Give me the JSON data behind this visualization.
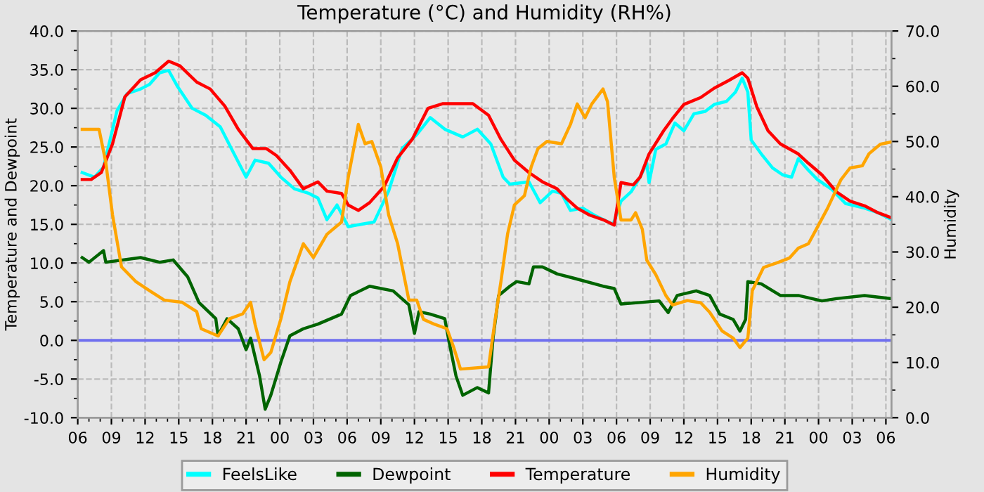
{
  "chart_data": {
    "type": "line",
    "title": "Temperature (°C) and Humidity (RH%)",
    "ylabel": "Temperature and Dewpoint",
    "y2label": "Humidity",
    "xlim": [
      6,
      78.5
    ],
    "xticks": [
      {
        "value": 6,
        "label": "06"
      },
      {
        "value": 9,
        "label": "09"
      },
      {
        "value": 12,
        "label": "12"
      },
      {
        "value": 15,
        "label": "15"
      },
      {
        "value": 18,
        "label": "18"
      },
      {
        "value": 21,
        "label": "21"
      },
      {
        "value": 24,
        "label": "00"
      },
      {
        "value": 27,
        "label": "03"
      },
      {
        "value": 30,
        "label": "06"
      },
      {
        "value": 33,
        "label": "09"
      },
      {
        "value": 36,
        "label": "12"
      },
      {
        "value": 39,
        "label": "15"
      },
      {
        "value": 42,
        "label": "18"
      },
      {
        "value": 45,
        "label": "21"
      },
      {
        "value": 48,
        "label": "00"
      },
      {
        "value": 51,
        "label": "03"
      },
      {
        "value": 54,
        "label": "06"
      },
      {
        "value": 57,
        "label": "09"
      },
      {
        "value": 60,
        "label": "12"
      },
      {
        "value": 63,
        "label": "15"
      },
      {
        "value": 66,
        "label": "18"
      },
      {
        "value": 69,
        "label": "21"
      },
      {
        "value": 72,
        "label": "00"
      },
      {
        "value": 75,
        "label": "03"
      },
      {
        "value": 78,
        "label": "06"
      }
    ],
    "ylim": [
      -10,
      40
    ],
    "yticks": [
      {
        "value": -10,
        "label": "-10.0"
      },
      {
        "value": -5,
        "label": "-5.0"
      },
      {
        "value": 0,
        "label": "0.0"
      },
      {
        "value": 5,
        "label": "5.0"
      },
      {
        "value": 10,
        "label": "10.0"
      },
      {
        "value": 15,
        "label": "15.0"
      },
      {
        "value": 20,
        "label": "20.0"
      },
      {
        "value": 25,
        "label": "25.0"
      },
      {
        "value": 30,
        "label": "30.0"
      },
      {
        "value": 35,
        "label": "35.0"
      },
      {
        "value": 40,
        "label": "40.0"
      }
    ],
    "y2lim": [
      0,
      70
    ],
    "y2ticks": [
      {
        "value": 0,
        "label": "0.0"
      },
      {
        "value": 10,
        "label": "10.0"
      },
      {
        "value": 20,
        "label": "20.0"
      },
      {
        "value": 30,
        "label": "30.0"
      },
      {
        "value": 40,
        "label": "40.0"
      },
      {
        "value": 50,
        "label": "50.0"
      },
      {
        "value": 60,
        "label": "60.0"
      },
      {
        "value": 70,
        "label": "70.0"
      }
    ],
    "grid": true,
    "legend": "bottom",
    "line_style": "solid",
    "marker": "none",
    "ref_lines": [
      {
        "axis": "y",
        "value": 0,
        "color": "#6f6fef"
      }
    ],
    "series": [
      {
        "name": "FeelsLike",
        "color": "#00ffff",
        "x": [
          6.4,
          7.5,
          8.3,
          9.5,
          10.4,
          11.6,
          12.4,
          13.3,
          14.1,
          14.9,
          16.2,
          17.4,
          18.7,
          19.9,
          21.0,
          21.8,
          23.0,
          24.1,
          25.3,
          26.6,
          27.4,
          28.2,
          29.1,
          30.1,
          31.2,
          32.4,
          33.7,
          34.9,
          36.2,
          37.4,
          38.7,
          40.3,
          41.6,
          42.8,
          43.9,
          44.5,
          46.2,
          47.2,
          48.3,
          49.1,
          49.9,
          51.0,
          52.0,
          53.7,
          54.4,
          55.3,
          56.1,
          56.7,
          56.9,
          57.5,
          58.4,
          59.2,
          60.0,
          60.9,
          61.9,
          62.7,
          63.8,
          64.6,
          65.2,
          65.7,
          66.0,
          66.9,
          67.9,
          68.8,
          69.6,
          70.2,
          71.1,
          71.9,
          73.2,
          74.4,
          76.1,
          77.3,
          78.4
        ],
        "values": [
          21.7,
          21.1,
          22.4,
          29.7,
          31.9,
          32.5,
          33.1,
          34.6,
          34.9,
          32.8,
          30.0,
          29.1,
          27.6,
          24.2,
          21.1,
          23.3,
          22.9,
          21.1,
          19.6,
          19.0,
          18.4,
          15.6,
          17.5,
          14.7,
          15.0,
          15.3,
          19.3,
          24.8,
          26.6,
          28.8,
          27.3,
          26.3,
          27.3,
          25.4,
          21.1,
          20.2,
          20.5,
          17.8,
          19.3,
          19.0,
          16.8,
          17.1,
          16.2,
          15.0,
          18.0,
          19.2,
          21.1,
          22.9,
          20.4,
          24.7,
          25.4,
          28.1,
          27.1,
          29.3,
          29.6,
          30.5,
          30.9,
          32.1,
          33.9,
          32.1,
          25.9,
          24.1,
          22.3,
          21.4,
          21.1,
          23.5,
          22.0,
          20.8,
          19.5,
          17.7,
          17.1,
          16.5,
          15.7
        ]
      },
      {
        "name": "Dewpoint",
        "color": "#006400",
        "x": [
          6.4,
          7.0,
          8.3,
          8.5,
          11.6,
          13.3,
          14.5,
          15.8,
          16.8,
          18.3,
          18.5,
          19.3,
          20.3,
          21.0,
          21.4,
          22.2,
          22.7,
          23.2,
          24.1,
          24.9,
          26.1,
          27.4,
          29.5,
          30.3,
          32.0,
          34.1,
          35.5,
          36.0,
          36.4,
          37.4,
          38.7,
          39.1,
          39.7,
          40.3,
          41.6,
          42.6,
          43.0,
          43.5,
          44.5,
          45.1,
          46.2,
          46.6,
          47.4,
          48.7,
          50.3,
          52.8,
          53.8,
          54.4,
          56.1,
          57.8,
          58.6,
          59.4,
          61.1,
          62.3,
          63.2,
          64.4,
          65.0,
          65.5,
          65.7,
          66.9,
          68.6,
          70.2,
          72.3,
          73.6,
          76.1,
          78.4
        ],
        "values": [
          10.7,
          10.1,
          11.6,
          10.1,
          10.7,
          10.1,
          10.4,
          8.2,
          4.9,
          2.8,
          0.6,
          2.8,
          1.5,
          -1.2,
          0.3,
          -4.6,
          -8.9,
          -7.1,
          -2.8,
          0.6,
          1.5,
          2.1,
          3.4,
          5.8,
          7.0,
          6.4,
          4.6,
          0.9,
          3.7,
          3.4,
          2.8,
          -0.3,
          -4.6,
          -7.1,
          -6.1,
          -6.8,
          0.3,
          5.8,
          7.0,
          7.6,
          7.3,
          9.5,
          9.5,
          8.6,
          8.0,
          7.0,
          6.7,
          4.7,
          4.9,
          5.1,
          3.6,
          5.8,
          6.4,
          5.8,
          3.4,
          2.7,
          1.2,
          2.7,
          7.6,
          7.3,
          5.8,
          5.8,
          5.1,
          5.4,
          5.8,
          5.4
        ]
      },
      {
        "name": "Temperature",
        "color": "#ff0000",
        "x": [
          6.4,
          7.2,
          8.1,
          9.1,
          10.2,
          11.6,
          12.9,
          14.1,
          15.1,
          16.6,
          17.8,
          19.1,
          20.3,
          21.6,
          22.8,
          23.7,
          24.9,
          26.1,
          27.4,
          28.2,
          29.5,
          30.1,
          31.0,
          32.0,
          33.3,
          34.5,
          35.8,
          37.2,
          38.5,
          40.3,
          41.2,
          42.6,
          43.7,
          44.9,
          46.2,
          47.4,
          48.7,
          49.5,
          50.5,
          51.6,
          52.8,
          53.8,
          54.4,
          55.5,
          56.1,
          56.9,
          58.2,
          59.0,
          60.0,
          61.5,
          62.7,
          64.0,
          65.2,
          65.7,
          66.5,
          67.5,
          68.6,
          70.2,
          71.1,
          72.3,
          73.6,
          74.8,
          76.1,
          77.3,
          78.4
        ],
        "values": [
          20.8,
          20.8,
          21.7,
          25.4,
          31.5,
          33.7,
          34.6,
          36.1,
          35.5,
          33.4,
          32.5,
          30.3,
          27.3,
          24.8,
          24.8,
          23.9,
          22.0,
          19.6,
          20.5,
          19.3,
          19.0,
          17.5,
          16.8,
          17.8,
          19.9,
          23.6,
          26.0,
          30.0,
          30.6,
          30.6,
          30.6,
          29.1,
          26.0,
          23.3,
          21.7,
          20.5,
          19.6,
          18.4,
          17.1,
          16.2,
          15.6,
          14.9,
          20.4,
          20.1,
          21.1,
          24.1,
          27.1,
          28.7,
          30.5,
          31.4,
          32.6,
          33.6,
          34.6,
          33.9,
          30.2,
          27.1,
          25.4,
          24.1,
          22.9,
          21.4,
          19.2,
          18.0,
          17.4,
          16.5,
          15.9
        ]
      },
      {
        "name": "Humidity",
        "color": "#ffa500",
        "axis": "y2",
        "x": [
          6.4,
          7.9,
          8.5,
          9.1,
          9.9,
          11.2,
          12.4,
          13.7,
          15.3,
          16.6,
          17.0,
          18.5,
          19.5,
          20.7,
          21.4,
          21.8,
          22.6,
          23.2,
          24.1,
          24.9,
          26.1,
          27.0,
          28.2,
          29.5,
          30.1,
          31.0,
          31.6,
          32.2,
          33.0,
          33.7,
          34.5,
          35.5,
          36.2,
          36.8,
          37.8,
          38.9,
          39.5,
          40.1,
          42.6,
          43.2,
          43.7,
          44.3,
          44.9,
          45.8,
          46.4,
          47.0,
          47.8,
          49.1,
          49.9,
          50.5,
          51.2,
          51.8,
          52.8,
          53.2,
          53.8,
          54.4,
          55.3,
          55.7,
          56.3,
          56.7,
          57.5,
          58.4,
          59.0,
          60.3,
          61.5,
          62.3,
          63.4,
          64.4,
          65.0,
          65.7,
          66.1,
          67.1,
          68.4,
          69.4,
          70.2,
          71.1,
          71.9,
          72.8,
          74.0,
          74.8,
          75.9,
          76.5,
          77.5,
          78.4
        ],
        "values": [
          52.2,
          52.2,
          46.2,
          36.7,
          27.3,
          24.6,
          23.0,
          21.3,
          20.9,
          19.2,
          16.1,
          14.8,
          17.9,
          18.8,
          20.9,
          16.9,
          10.5,
          11.8,
          17.9,
          24.6,
          31.5,
          29.0,
          33.2,
          35.4,
          43.5,
          53.1,
          49.6,
          50.0,
          45.4,
          36.7,
          31.5,
          21.3,
          21.3,
          17.8,
          16.9,
          16.1,
          12.7,
          8.8,
          9.2,
          17.9,
          24.6,
          33.3,
          38.5,
          40.2,
          45.4,
          48.7,
          50.0,
          49.6,
          53.1,
          56.8,
          54.3,
          56.8,
          59.5,
          57.2,
          43.5,
          35.8,
          35.8,
          37.1,
          34.1,
          28.5,
          25.9,
          22.1,
          20.4,
          21.2,
          20.8,
          19.1,
          15.7,
          14.4,
          12.7,
          14.4,
          23.0,
          27.2,
          28.1,
          28.9,
          30.7,
          31.5,
          34.5,
          37.9,
          43.1,
          45.2,
          45.6,
          47.8,
          49.5,
          49.9
        ]
      }
    ]
  }
}
